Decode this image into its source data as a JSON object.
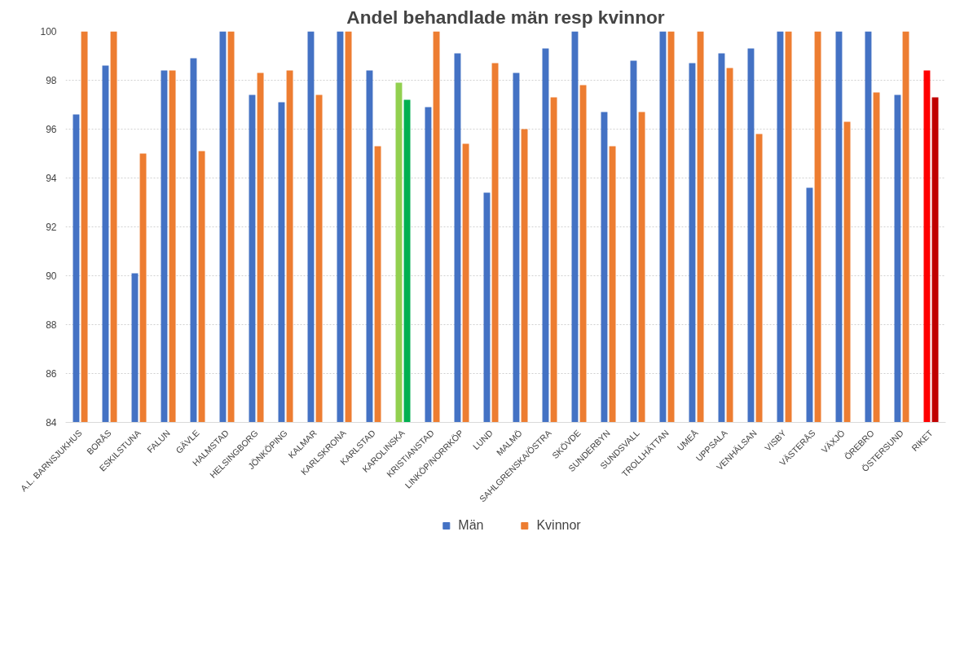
{
  "chart_data": {
    "type": "bar",
    "title": "Andel behandlade män resp kvinnor",
    "categories": [
      "A.L. BARNSJUKHUS",
      "BORÅS",
      "ESKILSTUNA",
      "FALUN",
      "GÄVLE",
      "HALMSTAD",
      "HELSINGBORG",
      "JÖNKÖPING",
      "KALMAR",
      "KARLSKRONA",
      "KARLSTAD",
      "KAROLINSKA",
      "KRISTIANSTAD",
      "LINKÖP/NORRKÖP",
      "LUND",
      "MALMÖ",
      "SAHLGRENSKA/ÖSTRA",
      "SKÖVDE",
      "SUNDERBYN",
      "SUNDSVALL",
      "TROLLHÄTTAN",
      "UMEÅ",
      "UPPSALA",
      "VENHÄLSAN",
      "VISBY",
      "VÄSTERÅS",
      "VÄXJÖ",
      "ÖREBRO",
      "ÖSTERSUND",
      "RIKET"
    ],
    "series": [
      {
        "name": "Män",
        "color": "#4472c4",
        "colors": [
          "#4472c4",
          "#4472c4",
          "#4472c4",
          "#4472c4",
          "#4472c4",
          "#4472c4",
          "#4472c4",
          "#4472c4",
          "#4472c4",
          "#4472c4",
          "#4472c4",
          "#92d050",
          "#4472c4",
          "#4472c4",
          "#4472c4",
          "#4472c4",
          "#4472c4",
          "#4472c4",
          "#4472c4",
          "#4472c4",
          "#4472c4",
          "#4472c4",
          "#4472c4",
          "#4472c4",
          "#4472c4",
          "#4472c4",
          "#4472c4",
          "#4472c4",
          "#4472c4",
          "#ff0000"
        ],
        "values": [
          96.6,
          98.6,
          90.1,
          98.4,
          98.9,
          100,
          97.4,
          97.1,
          100,
          100,
          98.4,
          97.9,
          96.9,
          99.1,
          93.4,
          98.3,
          99.3,
          100,
          96.7,
          98.8,
          100,
          98.7,
          99.1,
          99.3,
          100,
          93.6,
          100,
          100,
          97.4,
          98.4
        ]
      },
      {
        "name": "Kvinnor",
        "color": "#ed7d31",
        "colors": [
          "#ed7d31",
          "#ed7d31",
          "#ed7d31",
          "#ed7d31",
          "#ed7d31",
          "#ed7d31",
          "#ed7d31",
          "#ed7d31",
          "#ed7d31",
          "#ed7d31",
          "#ed7d31",
          "#00b050",
          "#ed7d31",
          "#ed7d31",
          "#ed7d31",
          "#ed7d31",
          "#ed7d31",
          "#ed7d31",
          "#ed7d31",
          "#ed7d31",
          "#ed7d31",
          "#ed7d31",
          "#ed7d31",
          "#ed7d31",
          "#ed7d31",
          "#ed7d31",
          "#ed7d31",
          "#ed7d31",
          "#ed7d31",
          "#c00000"
        ],
        "values": [
          100,
          100,
          95.0,
          98.4,
          95.1,
          100,
          98.3,
          98.4,
          97.4,
          100,
          95.3,
          97.2,
          100,
          95.4,
          98.7,
          96.0,
          97.3,
          97.8,
          95.3,
          96.7,
          100,
          100,
          98.5,
          95.8,
          100,
          100,
          96.3,
          97.5,
          100,
          97.3
        ]
      }
    ],
    "ylim": [
      84,
      100
    ],
    "yticks": [
      84,
      86,
      88,
      90,
      92,
      94,
      96,
      98,
      100
    ],
    "grid": "y",
    "legend": "bottom"
  }
}
